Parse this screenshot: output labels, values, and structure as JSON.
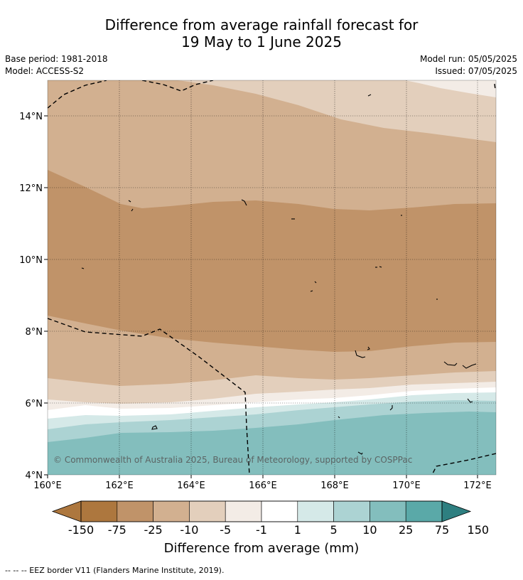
{
  "title_line1": "Difference from average rainfall forecast for",
  "title_line2": "19 May to 1 June 2025",
  "meta": {
    "base_period": "Base period: 1981-2018",
    "model": "Model: ACCESS-S2",
    "model_run": "Model run: 05/05/2025",
    "issued": "Issued: 07/05/2025"
  },
  "axes": {
    "lat_labels": [
      "14°N",
      "12°N",
      "10°N",
      "8°N",
      "6°N",
      "4°N"
    ],
    "lon_labels": [
      "160°E",
      "162°E",
      "164°E",
      "166°E",
      "168°E",
      "170°E",
      "172°E"
    ]
  },
  "colorbar": {
    "title": "Difference from average (mm)",
    "labels": [
      "-150",
      "-75",
      "-25",
      "-10",
      "-5",
      "-1",
      "1",
      "5",
      "10",
      "25",
      "75",
      "150"
    ],
    "colors": [
      "#ad773e",
      "#c09369",
      "#d2b090",
      "#e3cfbc",
      "#f3ece6",
      "#ffffff",
      "#d5e9e8",
      "#acd3d3",
      "#83bebd",
      "#5aa9a8",
      "#33999a",
      "#2e7f80"
    ]
  },
  "copyright": "© Commonwealth of Australia 2025, Bureau of Meteorology, supported by COSPPac",
  "footer": "--  --  -- EEZ border V11 (Flanders Marine Institute, 2019)."
}
